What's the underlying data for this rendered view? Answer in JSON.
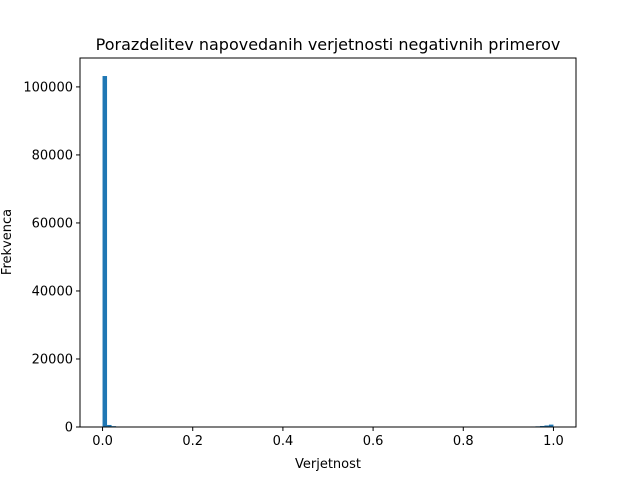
{
  "chart_data": {
    "type": "bar",
    "title": "Porazdelitev napovedanih verjetnosti negativnih primerov",
    "xlabel": "Verjetnost",
    "ylabel": "Frekvenca",
    "xlim": [
      -0.05,
      1.05
    ],
    "ylim": [
      0,
      108500
    ],
    "xticks": [
      0.0,
      0.2,
      0.4,
      0.6,
      0.8,
      1.0
    ],
    "xtick_labels": [
      "0.0",
      "0.2",
      "0.4",
      "0.6",
      "0.8",
      "1.0"
    ],
    "yticks": [
      0,
      20000,
      40000,
      60000,
      80000,
      100000
    ],
    "ytick_labels": [
      "0",
      "20000",
      "40000",
      "60000",
      "80000",
      "100000"
    ],
    "bin_width": 0.01,
    "bins": [
      {
        "x0": 0.0,
        "count": 103200
      },
      {
        "x0": 0.01,
        "count": 600
      },
      {
        "x0": 0.02,
        "count": 250
      },
      {
        "x0": 0.03,
        "count": 120
      },
      {
        "x0": 0.95,
        "count": 150
      },
      {
        "x0": 0.96,
        "count": 200
      },
      {
        "x0": 0.97,
        "count": 300
      },
      {
        "x0": 0.98,
        "count": 450
      },
      {
        "x0": 0.99,
        "count": 700
      }
    ],
    "bar_color": "#1f77b4",
    "grid": false,
    "legend": "none"
  }
}
